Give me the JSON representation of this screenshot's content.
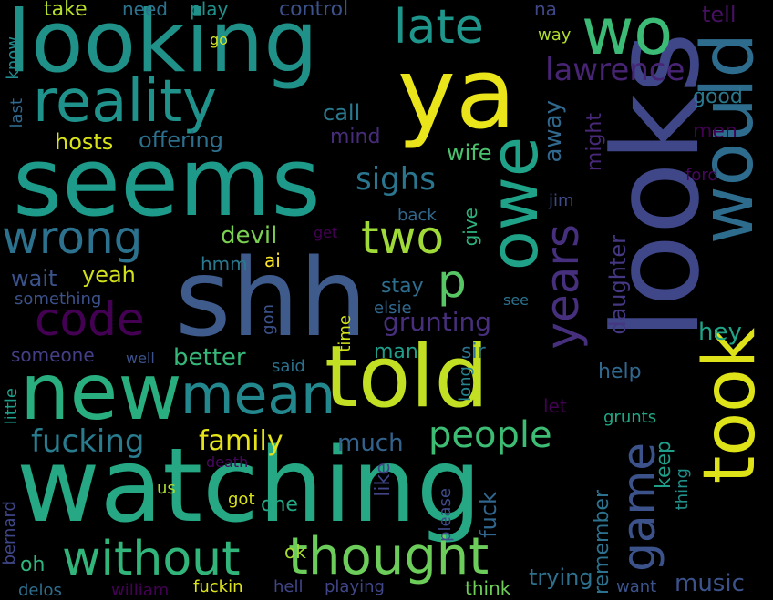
{
  "cloud": {
    "background": "#000000",
    "words": [
      {
        "text": "watching",
        "color": "#25a883"
      },
      {
        "text": "looks",
        "color": "#3f4788"
      },
      {
        "text": "shh",
        "color": "#3e5b8b"
      },
      {
        "text": "seems",
        "color": "#1e9a8a"
      },
      {
        "text": "looking",
        "color": "#1f9188"
      },
      {
        "text": "told",
        "color": "#c2df23"
      },
      {
        "text": "ya",
        "color": "#eae51a"
      },
      {
        "text": "new",
        "color": "#29af7f"
      },
      {
        "text": "would",
        "color": "#2e6c8e"
      },
      {
        "text": "took",
        "color": "#dde318"
      },
      {
        "text": "owe",
        "color": "#1fa287"
      },
      {
        "text": "wo",
        "color": "#3bbb75"
      },
      {
        "text": "reality",
        "color": "#20928c"
      },
      {
        "text": "mean",
        "color": "#23888e"
      },
      {
        "text": "thought",
        "color": "#6ccd5a"
      },
      {
        "text": "without",
        "color": "#31b57b"
      },
      {
        "text": "late",
        "color": "#1f968b"
      },
      {
        "text": "wrong",
        "color": "#2c728e"
      },
      {
        "text": "code",
        "color": "#440154"
      },
      {
        "text": "two",
        "color": "#a0da39"
      },
      {
        "text": "years",
        "color": "#46307e"
      },
      {
        "text": "game",
        "color": "#3b528b"
      },
      {
        "text": "p",
        "color": "#57c665"
      },
      {
        "text": "people",
        "color": "#3dbc74"
      },
      {
        "text": "fucking",
        "color": "#287c8e"
      },
      {
        "text": "lawrence",
        "color": "#482475"
      },
      {
        "text": "sighs",
        "color": "#2a768e"
      },
      {
        "text": "family",
        "color": "#e5e419"
      },
      {
        "text": "grunting",
        "color": "#472f7d"
      },
      {
        "text": "much",
        "color": "#33638d"
      },
      {
        "text": "better",
        "color": "#35b779"
      },
      {
        "text": "devil",
        "color": "#7ad151"
      },
      {
        "text": "music",
        "color": "#3b528b"
      },
      {
        "text": "away",
        "color": "#31688e"
      },
      {
        "text": "hey",
        "color": "#20a386"
      },
      {
        "text": "call",
        "color": "#2a788e"
      },
      {
        "text": "wife",
        "color": "#4ac16d"
      },
      {
        "text": "daughter",
        "color": "#453781"
      },
      {
        "text": "trying",
        "color": "#2d708e"
      },
      {
        "text": "fuck",
        "color": "#31678e"
      },
      {
        "text": "hosts",
        "color": "#d8e219"
      },
      {
        "text": "offering",
        "color": "#2d708e"
      },
      {
        "text": "yeah",
        "color": "#d0e11c"
      },
      {
        "text": "wait",
        "color": "#3b528b"
      },
      {
        "text": "help",
        "color": "#31688e"
      },
      {
        "text": "keep",
        "color": "#1f9e89"
      },
      {
        "text": "remember",
        "color": "#2c728e"
      },
      {
        "text": "tell",
        "color": "#471063"
      },
      {
        "text": "might",
        "color": "#482878"
      },
      {
        "text": "men",
        "color": "#440154"
      },
      {
        "text": "stay",
        "color": "#2e6e8e"
      },
      {
        "text": "take",
        "color": "#b5de2b"
      },
      {
        "text": "control",
        "color": "#3b528b"
      },
      {
        "text": "play",
        "color": "#21918c"
      },
      {
        "text": "need",
        "color": "#2c728e"
      },
      {
        "text": "mind",
        "color": "#472c7a"
      },
      {
        "text": "good",
        "color": "#2a788e"
      },
      {
        "text": "man",
        "color": "#1f9e89"
      },
      {
        "text": "sir",
        "color": "#2c728e"
      },
      {
        "text": "ok",
        "color": "#a8db34"
      },
      {
        "text": "one",
        "color": "#22a785"
      },
      {
        "text": "like",
        "color": "#414487"
      },
      {
        "text": "please",
        "color": "#3e4a89"
      },
      {
        "text": "thing",
        "color": "#21918c"
      },
      {
        "text": "give",
        "color": "#2db27d"
      },
      {
        "text": "ai",
        "color": "#fde725"
      },
      {
        "text": "hmm",
        "color": "#2a788e"
      },
      {
        "text": "let",
        "color": "#440154"
      },
      {
        "text": "grunts",
        "color": "#22a884"
      },
      {
        "text": "long",
        "color": "#25848e"
      },
      {
        "text": "time",
        "color": "#d2e21b"
      },
      {
        "text": "elsie",
        "color": "#31688e"
      },
      {
        "text": "gon",
        "color": "#3b528b"
      },
      {
        "text": "said",
        "color": "#2c728e"
      },
      {
        "text": "got",
        "color": "#d8e219"
      },
      {
        "text": "us",
        "color": "#addc30"
      },
      {
        "text": "oh",
        "color": "#2fb47c"
      },
      {
        "text": "fuckin",
        "color": "#dce319"
      },
      {
        "text": "hell",
        "color": "#404688"
      },
      {
        "text": "playing",
        "color": "#404688"
      },
      {
        "text": "think",
        "color": "#6ece58"
      },
      {
        "text": "want",
        "color": "#3b528b"
      },
      {
        "text": "william",
        "color": "#440154"
      },
      {
        "text": "delos",
        "color": "#2e6e8e"
      },
      {
        "text": "bernard",
        "color": "#3f4788"
      },
      {
        "text": "little",
        "color": "#1f9e89"
      },
      {
        "text": "death",
        "color": "#46085c"
      },
      {
        "text": "someone",
        "color": "#433e85"
      },
      {
        "text": "something",
        "color": "#3b528b"
      },
      {
        "text": "well",
        "color": "#3b528b"
      },
      {
        "text": "back",
        "color": "#31688e"
      },
      {
        "text": "get",
        "color": "#440154"
      },
      {
        "text": "jim",
        "color": "#3e4a89"
      },
      {
        "text": "see",
        "color": "#2c728e"
      },
      {
        "text": "ford",
        "color": "#46085c"
      },
      {
        "text": "go",
        "color": "#d2e21b"
      },
      {
        "text": "way",
        "color": "#b0dd2f"
      },
      {
        "text": "na",
        "color": "#3f4788"
      },
      {
        "text": "know",
        "color": "#228b8d"
      },
      {
        "text": "last",
        "color": "#31688e"
      }
    ]
  }
}
